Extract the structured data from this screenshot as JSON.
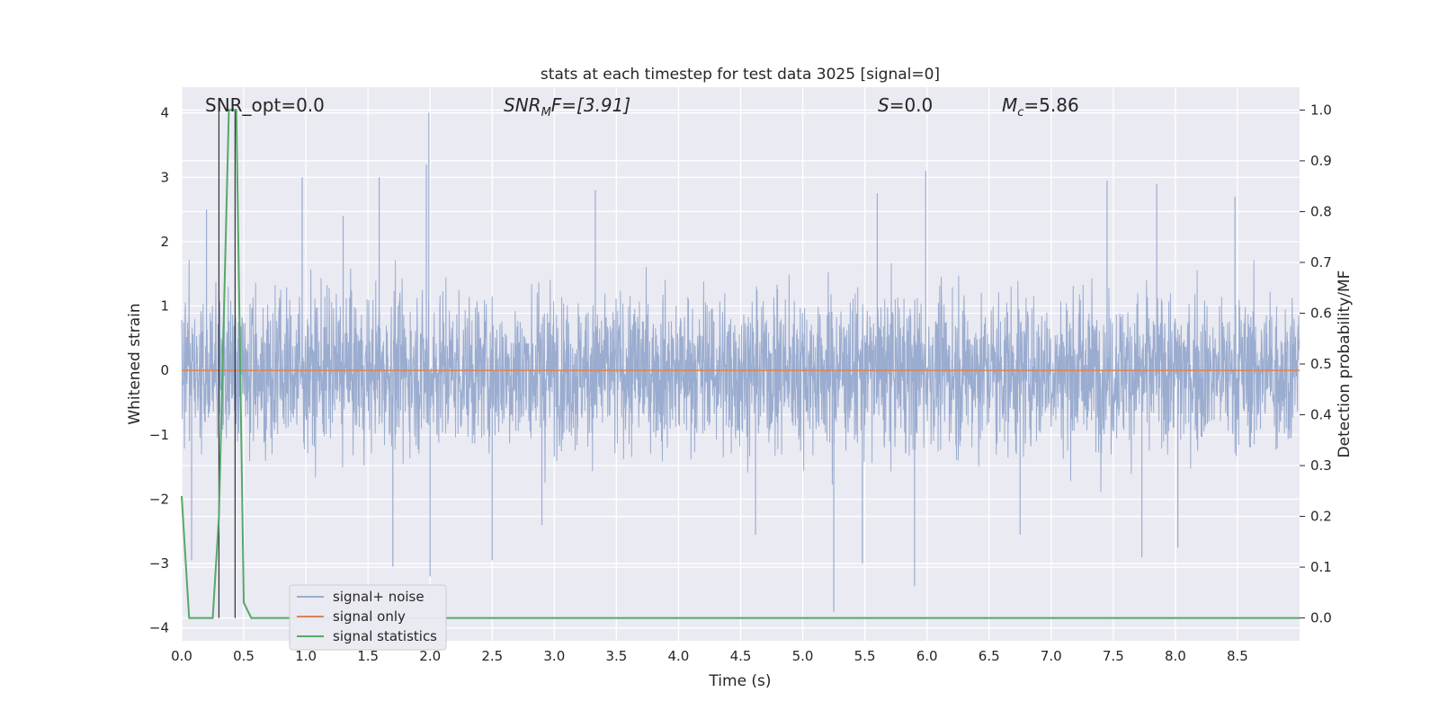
{
  "chart_data": {
    "type": "line",
    "title": "stats at each timestep for test data 3025 [signal=0]",
    "xlabel": "Time (s)",
    "ylabel": "Whitened strain",
    "y2label": "Detection probability/MF",
    "xlim": [
      0.0,
      9.0
    ],
    "ylim": [
      -4.2,
      4.4
    ],
    "y2lim": [
      -0.045,
      1.045
    ],
    "xticks": [
      "0.0",
      "0.5",
      "1.0",
      "1.5",
      "2.0",
      "2.5",
      "3.0",
      "3.5",
      "4.0",
      "4.5",
      "5.0",
      "5.5",
      "6.0",
      "6.5",
      "7.0",
      "7.5",
      "8.0",
      "8.5"
    ],
    "xtick_values": [
      0.0,
      0.5,
      1.0,
      1.5,
      2.0,
      2.5,
      3.0,
      3.5,
      4.0,
      4.5,
      5.0,
      5.5,
      6.0,
      6.5,
      7.0,
      7.5,
      8.0,
      8.5
    ],
    "yticks": [
      "4",
      "3",
      "2",
      "1",
      "0",
      "−1",
      "−2",
      "−3",
      "−4"
    ],
    "ytick_values": [
      4,
      3,
      2,
      1,
      0,
      -1,
      -2,
      -3,
      -4
    ],
    "y2ticks": [
      "1.0",
      "0.9",
      "0.8",
      "0.7",
      "0.6",
      "0.5",
      "0.4",
      "0.3",
      "0.2",
      "0.1",
      "0.0"
    ],
    "y2tick_values": [
      1.0,
      0.9,
      0.8,
      0.7,
      0.6,
      0.5,
      0.4,
      0.3,
      0.2,
      0.1,
      0.0
    ],
    "grid": true,
    "legend_position": "lower-left",
    "annotations": {
      "snr_opt": "SNR_opt=0.0",
      "snr_mf_base": "SNR",
      "snr_mf_sub": "M",
      "snr_mf_rest": "F=[3.91]",
      "s_name": "S",
      "s_value": "=0.0",
      "mc_name": "M",
      "mc_sub": "c",
      "mc_value": "=5.86"
    },
    "series": [
      {
        "name": "signal+ noise",
        "color": "#9aaccf",
        "axis": "left",
        "duration": 9.0,
        "envelope": "whitened gaussian noise, roughly between -1.5 and 1.5 with spikes",
        "spikes": [
          {
            "t": 1.99,
            "v": 4.0
          },
          {
            "t": 1.97,
            "v": 3.2
          },
          {
            "t": 5.99,
            "v": 3.1
          },
          {
            "t": 0.97,
            "v": 3.0
          },
          {
            "t": 1.59,
            "v": 3.0
          },
          {
            "t": 7.45,
            "v": 2.95
          },
          {
            "t": 7.85,
            "v": 2.9
          },
          {
            "t": 3.33,
            "v": 2.8
          },
          {
            "t": 5.6,
            "v": 2.75
          },
          {
            "t": 8.48,
            "v": 2.7
          },
          {
            "t": 0.2,
            "v": 2.5
          },
          {
            "t": 1.3,
            "v": 2.4
          },
          {
            "t": 5.25,
            "v": -3.75
          },
          {
            "t": 5.9,
            "v": -3.35
          },
          {
            "t": 2.0,
            "v": -3.2
          },
          {
            "t": 1.7,
            "v": -3.05
          },
          {
            "t": 7.73,
            "v": -2.9
          },
          {
            "t": 2.5,
            "v": -2.95
          },
          {
            "t": 0.08,
            "v": -2.95
          },
          {
            "t": 5.48,
            "v": -3.0
          },
          {
            "t": 8.02,
            "v": -2.75
          },
          {
            "t": 4.62,
            "v": -2.55
          },
          {
            "t": 2.9,
            "v": -2.4
          },
          {
            "t": 6.75,
            "v": -2.55
          }
        ]
      },
      {
        "name": "signal only",
        "color": "#dd8452",
        "axis": "left",
        "x": [
          0.0,
          9.0
        ],
        "values": [
          0.0,
          0.0
        ]
      },
      {
        "name": "signal statistics",
        "color": "#55a868",
        "axis": "right",
        "x": [
          0.0,
          0.06,
          0.1,
          0.25,
          0.3,
          0.38,
          0.44,
          0.5,
          0.56,
          9.0
        ],
        "values": [
          0.24,
          0.0,
          0.0,
          0.0,
          0.2,
          1.0,
          1.0,
          0.03,
          0.0,
          0.0
        ]
      }
    ],
    "vertical_markers": [
      0.3,
      0.43
    ]
  }
}
